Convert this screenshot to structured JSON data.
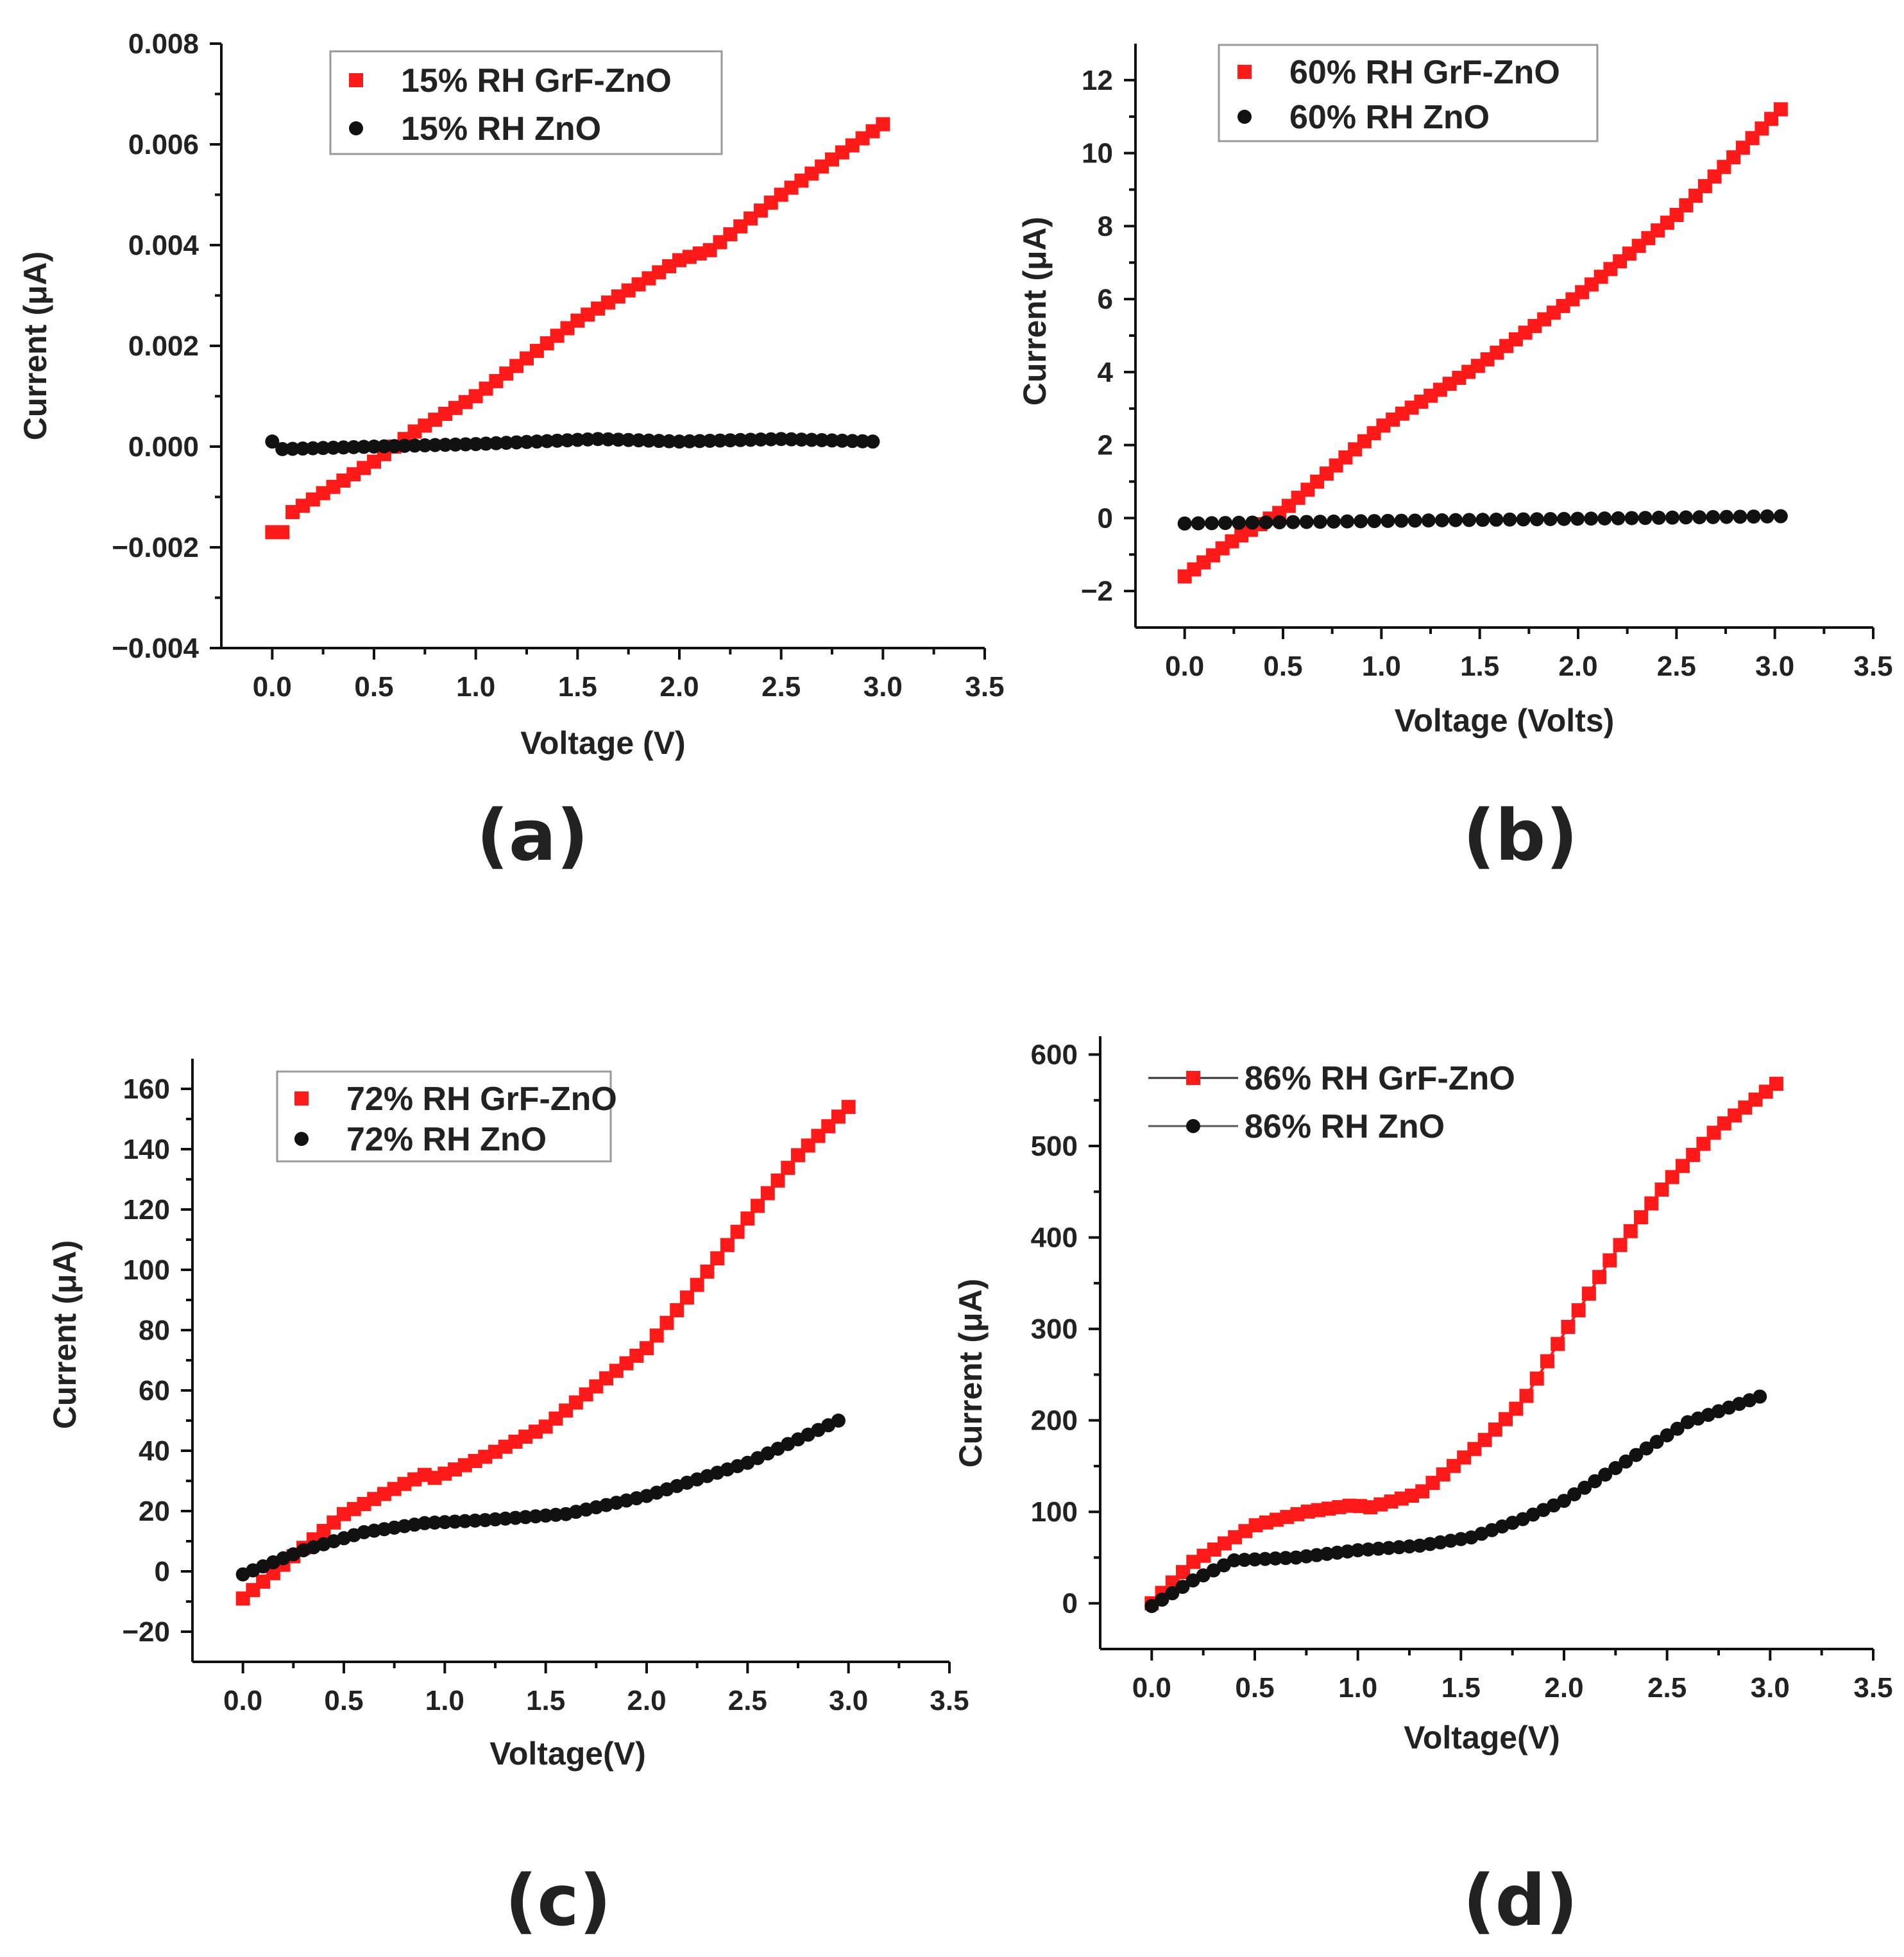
{
  "colors": {
    "grf": "#ff1a1a",
    "zno": "#111111",
    "axis": "#111111",
    "legend_border": "#9a9a9a"
  },
  "chart_data": [
    {
      "type": "scatter",
      "caption": "(a)",
      "xlabel": "Voltage (V)",
      "ylabel": "Current (μA)",
      "xlim": [
        -0.25,
        3.5
      ],
      "ylim": [
        -0.004,
        0.008
      ],
      "x_ticks": [
        0.0,
        0.5,
        1.0,
        1.5,
        2.0,
        2.5,
        3.0,
        3.5
      ],
      "x_tick_labels": [
        "0.0",
        "0.5",
        "1.0",
        "1.5",
        "2.0",
        "2.5",
        "3.0",
        "3.5"
      ],
      "y_ticks": [
        -0.004,
        -0.002,
        0.0,
        0.002,
        0.004,
        0.006,
        0.008
      ],
      "y_tick_labels": [
        "−0.004",
        "−0.002",
        "0.000",
        "0.002",
        "0.004",
        "0.006",
        "0.008"
      ],
      "legend": {
        "position": "top-left",
        "connected_markers": false
      },
      "series": [
        {
          "name": "15% RH GrF-ZnO",
          "marker": "square",
          "color": "#ff1a1a",
          "x": [
            0.0,
            3.0
          ],
          "y": [
            -0.0017,
            0.0064
          ],
          "knots": [
            [
              0.0,
              -0.0017
            ],
            [
              0.05,
              -0.0017
            ],
            [
              0.1,
              -0.0013
            ],
            [
              0.5,
              -0.0003
            ],
            [
              0.7,
              0.0003
            ],
            [
              1.0,
              0.001
            ],
            [
              1.5,
              0.0025
            ],
            [
              2.0,
              0.0037
            ],
            [
              2.15,
              0.0039
            ],
            [
              2.5,
              0.005
            ],
            [
              3.0,
              0.0064
            ]
          ],
          "n_points": 61
        },
        {
          "name": "15% RH ZnO",
          "marker": "circle",
          "color": "#111111",
          "x": [
            0.0,
            2.95
          ],
          "y": [
            0.0001,
            0.0001
          ],
          "knots": [
            [
              0.0,
              0.0001
            ],
            [
              0.05,
              -5e-05
            ],
            [
              0.5,
              0.0
            ],
            [
              1.0,
              5e-05
            ],
            [
              1.6,
              0.00015
            ],
            [
              2.0,
              0.0001
            ],
            [
              2.5,
              0.00015
            ],
            [
              2.95,
              0.0001
            ]
          ],
          "n_points": 60
        }
      ]
    },
    {
      "type": "scatter",
      "caption": "(b)",
      "xlabel": "Voltage (Volts)",
      "ylabel": "Current (μA)",
      "xlim": [
        -0.25,
        3.5
      ],
      "ylim": [
        -3,
        13
      ],
      "x_ticks": [
        0.0,
        0.5,
        1.0,
        1.5,
        2.0,
        2.5,
        3.0,
        3.5
      ],
      "x_tick_labels": [
        "0.0",
        "0.5",
        "1.0",
        "1.5",
        "2.0",
        "2.5",
        "3.0",
        "3.5"
      ],
      "y_ticks": [
        -2,
        0,
        2,
        4,
        6,
        8,
        10,
        12
      ],
      "y_tick_labels": [
        "−2",
        "0",
        "2",
        "4",
        "6",
        "8",
        "10",
        "12"
      ],
      "legend": {
        "position": "top-left",
        "connected_markers": false
      },
      "series": [
        {
          "name": "60% RH GrF-ZnO",
          "marker": "square",
          "color": "#ff1a1a",
          "x": [
            0.0,
            3.03
          ],
          "y": [
            -1.6,
            11.2
          ],
          "knots": [
            [
              0.0,
              -1.6
            ],
            [
              0.25,
              -0.6
            ],
            [
              0.5,
              0.2
            ],
            [
              1.0,
              2.5
            ],
            [
              1.5,
              4.2
            ],
            [
              2.0,
              6.1
            ],
            [
              2.5,
              8.3
            ],
            [
              3.03,
              11.2
            ]
          ],
          "n_points": 64
        },
        {
          "name": "60% RH ZnO",
          "marker": "circle",
          "color": "#111111",
          "x": [
            0.0,
            3.03
          ],
          "y": [
            -0.15,
            0.05
          ],
          "knots": [
            [
              0.0,
              -0.15
            ],
            [
              1.0,
              -0.08
            ],
            [
              2.0,
              -0.02
            ],
            [
              3.03,
              0.05
            ]
          ],
          "n_points": 45
        }
      ]
    },
    {
      "type": "scatter",
      "caption": "(c)",
      "xlabel": "Voltage(V)",
      "ylabel": "Current (μA)",
      "xlim": [
        -0.25,
        3.5
      ],
      "ylim": [
        -30,
        170
      ],
      "x_ticks": [
        0.0,
        0.5,
        1.0,
        1.5,
        2.0,
        2.5,
        3.0,
        3.5
      ],
      "x_tick_labels": [
        "0.0",
        "0.5",
        "1.0",
        "1.5",
        "2.0",
        "2.5",
        "3.0",
        "3.5"
      ],
      "y_ticks": [
        -20,
        0,
        20,
        40,
        60,
        80,
        100,
        120,
        140,
        160
      ],
      "y_tick_labels": [
        "−20",
        "0",
        "20",
        "40",
        "60",
        "80",
        "100",
        "120",
        "140",
        "160"
      ],
      "legend": {
        "position": "top-left",
        "connected_markers": false
      },
      "series": [
        {
          "name": "72% RH GrF-ZnO",
          "marker": "square",
          "color": "#ff1a1a",
          "x": [
            0.0,
            3.0
          ],
          "y": [
            -9,
            154
          ],
          "knots": [
            [
              0.0,
              -9
            ],
            [
              0.25,
              5
            ],
            [
              0.5,
              19
            ],
            [
              0.8,
              29
            ],
            [
              0.9,
              32
            ],
            [
              0.95,
              31
            ],
            [
              1.2,
              38
            ],
            [
              1.5,
              48
            ],
            [
              1.8,
              64
            ],
            [
              2.0,
              74
            ],
            [
              2.25,
              95
            ],
            [
              2.5,
              117
            ],
            [
              2.75,
              138
            ],
            [
              3.0,
              154
            ]
          ],
          "n_points": 61
        },
        {
          "name": "72% RH ZnO",
          "marker": "circle",
          "color": "#111111",
          "x": [
            0.0,
            2.95
          ],
          "y": [
            -1,
            50
          ],
          "knots": [
            [
              0.0,
              -1
            ],
            [
              0.3,
              7
            ],
            [
              0.6,
              13
            ],
            [
              0.9,
              16
            ],
            [
              1.2,
              17
            ],
            [
              1.6,
              19
            ],
            [
              2.0,
              25
            ],
            [
              2.5,
              36
            ],
            [
              2.95,
              50
            ]
          ],
          "n_points": 60
        }
      ]
    },
    {
      "type": "line",
      "caption": "(d)",
      "xlabel": "Voltage(V)",
      "ylabel": "Current (μA)",
      "xlim": [
        -0.25,
        3.5
      ],
      "ylim": [
        -50,
        620
      ],
      "x_ticks": [
        0.0,
        0.5,
        1.0,
        1.5,
        2.0,
        2.5,
        3.0,
        3.5
      ],
      "x_tick_labels": [
        "0.0",
        "0.5",
        "1.0",
        "1.5",
        "2.0",
        "2.5",
        "3.0",
        "3.5"
      ],
      "y_ticks": [
        0,
        100,
        200,
        300,
        400,
        500,
        600
      ],
      "y_tick_labels": [
        "0",
        "100",
        "200",
        "300",
        "400",
        "500",
        "600"
      ],
      "legend": {
        "position": "top-left",
        "connected_markers": true
      },
      "series": [
        {
          "name": "86% RH GrF-ZnO",
          "marker": "square",
          "color": "#ff1a1a",
          "x": [
            0.0,
            3.03
          ],
          "y": [
            0,
            568
          ],
          "knots": [
            [
              0.0,
              0
            ],
            [
              0.2,
              45
            ],
            [
              0.5,
              85
            ],
            [
              0.75,
              100
            ],
            [
              1.0,
              108
            ],
            [
              1.03,
              103
            ],
            [
              1.3,
              120
            ],
            [
              1.6,
              175
            ],
            [
              1.8,
              220
            ],
            [
              2.0,
              295
            ],
            [
              2.25,
              385
            ],
            [
              2.5,
              460
            ],
            [
              2.75,
              520
            ],
            [
              3.03,
              568
            ]
          ],
          "n_points": 61
        },
        {
          "name": "86% RH ZnO",
          "marker": "circle",
          "color": "#111111",
          "x": [
            0.0,
            2.95
          ],
          "y": [
            -3,
            226
          ],
          "knots": [
            [
              0.0,
              -3
            ],
            [
              0.2,
              25
            ],
            [
              0.4,
              47
            ],
            [
              0.7,
              50
            ],
            [
              1.0,
              58
            ],
            [
              1.3,
              63
            ],
            [
              1.55,
              72
            ],
            [
              1.8,
              92
            ],
            [
              2.0,
              112
            ],
            [
              2.3,
              155
            ],
            [
              2.6,
              198
            ],
            [
              2.95,
              226
            ]
          ],
          "n_points": 60
        }
      ]
    }
  ]
}
